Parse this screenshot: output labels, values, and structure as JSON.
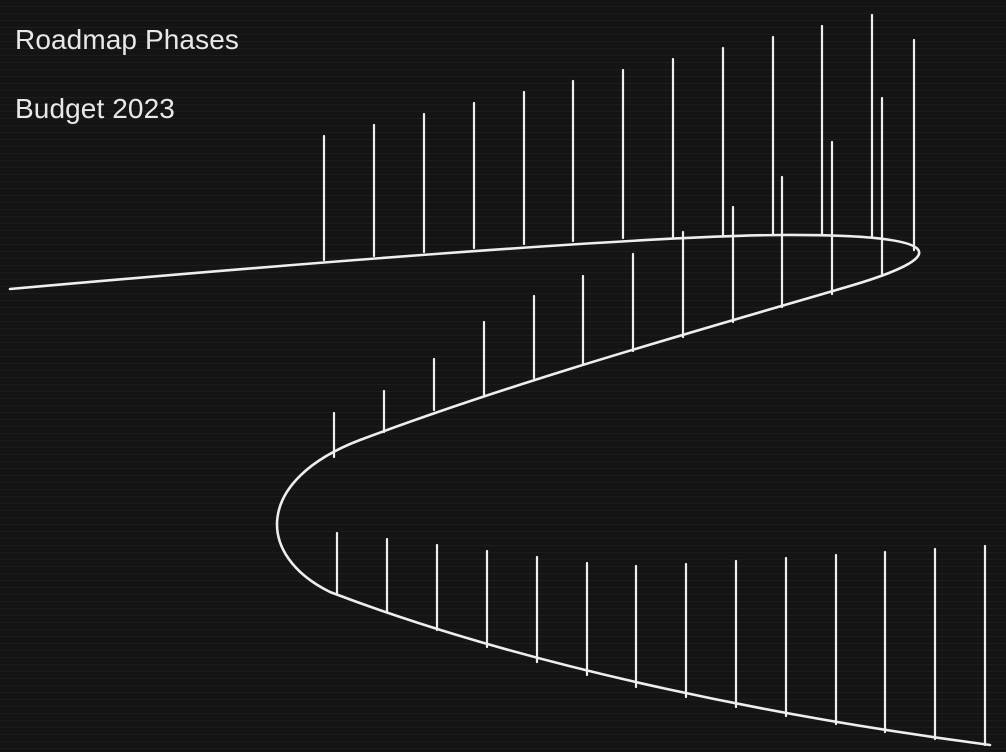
{
  "header": {
    "title": "Roadmap Phases",
    "subtitle": "Budget 2023"
  },
  "colors": {
    "background": "#141414",
    "foreground": "#eeeeee"
  }
}
